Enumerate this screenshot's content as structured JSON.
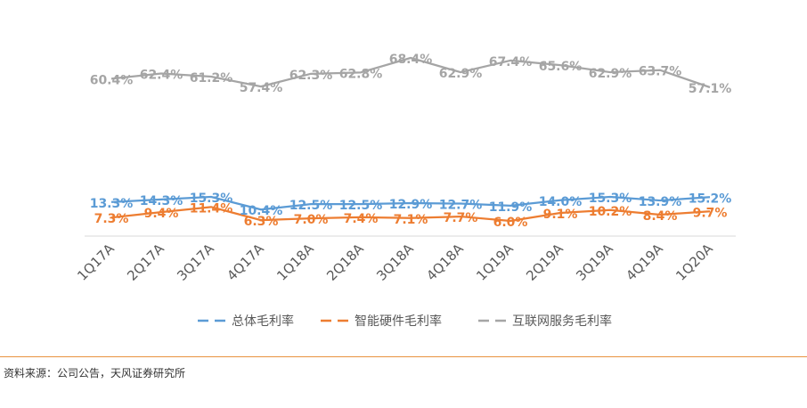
{
  "chart_data": {
    "type": "line",
    "categories": [
      "1Q17A",
      "2Q17A",
      "3Q17A",
      "4Q17A",
      "1Q18A",
      "2Q18A",
      "3Q18A",
      "4Q18A",
      "1Q19A",
      "2Q19A",
      "3Q19A",
      "4Q19A",
      "1Q20A"
    ],
    "series": [
      {
        "name": "总体毛利率",
        "color": "#5b9bd5",
        "values": [
          13.3,
          14.3,
          15.3,
          10.4,
          12.5,
          12.5,
          12.9,
          12.7,
          11.9,
          14.0,
          15.3,
          13.9,
          15.2
        ],
        "labels": [
          "13.3%",
          "14.3%",
          "15.3%",
          "10.4%",
          "12.5%",
          "12.5%",
          "12.9%",
          "12.7%",
          "11.9%",
          "14.0%",
          "15.3%",
          "13.9%",
          "15.2%"
        ]
      },
      {
        "name": "智能硬件毛利率",
        "color": "#ed7d31",
        "values": [
          7.3,
          9.4,
          11.4,
          6.3,
          7.0,
          7.4,
          7.1,
          7.7,
          6.0,
          9.1,
          10.2,
          8.4,
          9.7
        ],
        "labels": [
          "7.3%",
          "9.4%",
          "11.4%",
          "6.3%",
          "7.0%",
          "7.4%",
          "7.1%",
          "7.7%",
          "6.0%",
          "9.1%",
          "10.2%",
          "8.4%",
          "9.7%"
        ]
      },
      {
        "name": "互联网服务毛利率",
        "color": "#a5a5a5",
        "values": [
          60.4,
          62.4,
          61.2,
          57.4,
          62.3,
          62.8,
          68.4,
          62.9,
          67.4,
          65.6,
          62.9,
          63.7,
          57.1
        ],
        "labels": [
          "60.4%",
          "62.4%",
          "61.2%",
          "57.4%",
          "62.3%",
          "62.8%",
          "68.4%",
          "62.9%",
          "67.4%",
          "65.6%",
          "62.9%",
          "63.7%",
          "57.1%"
        ]
      }
    ],
    "legend_position": "bottom",
    "grid": false
  },
  "footer": {
    "source": "资料来源：公司公告，天风证券研究所"
  }
}
